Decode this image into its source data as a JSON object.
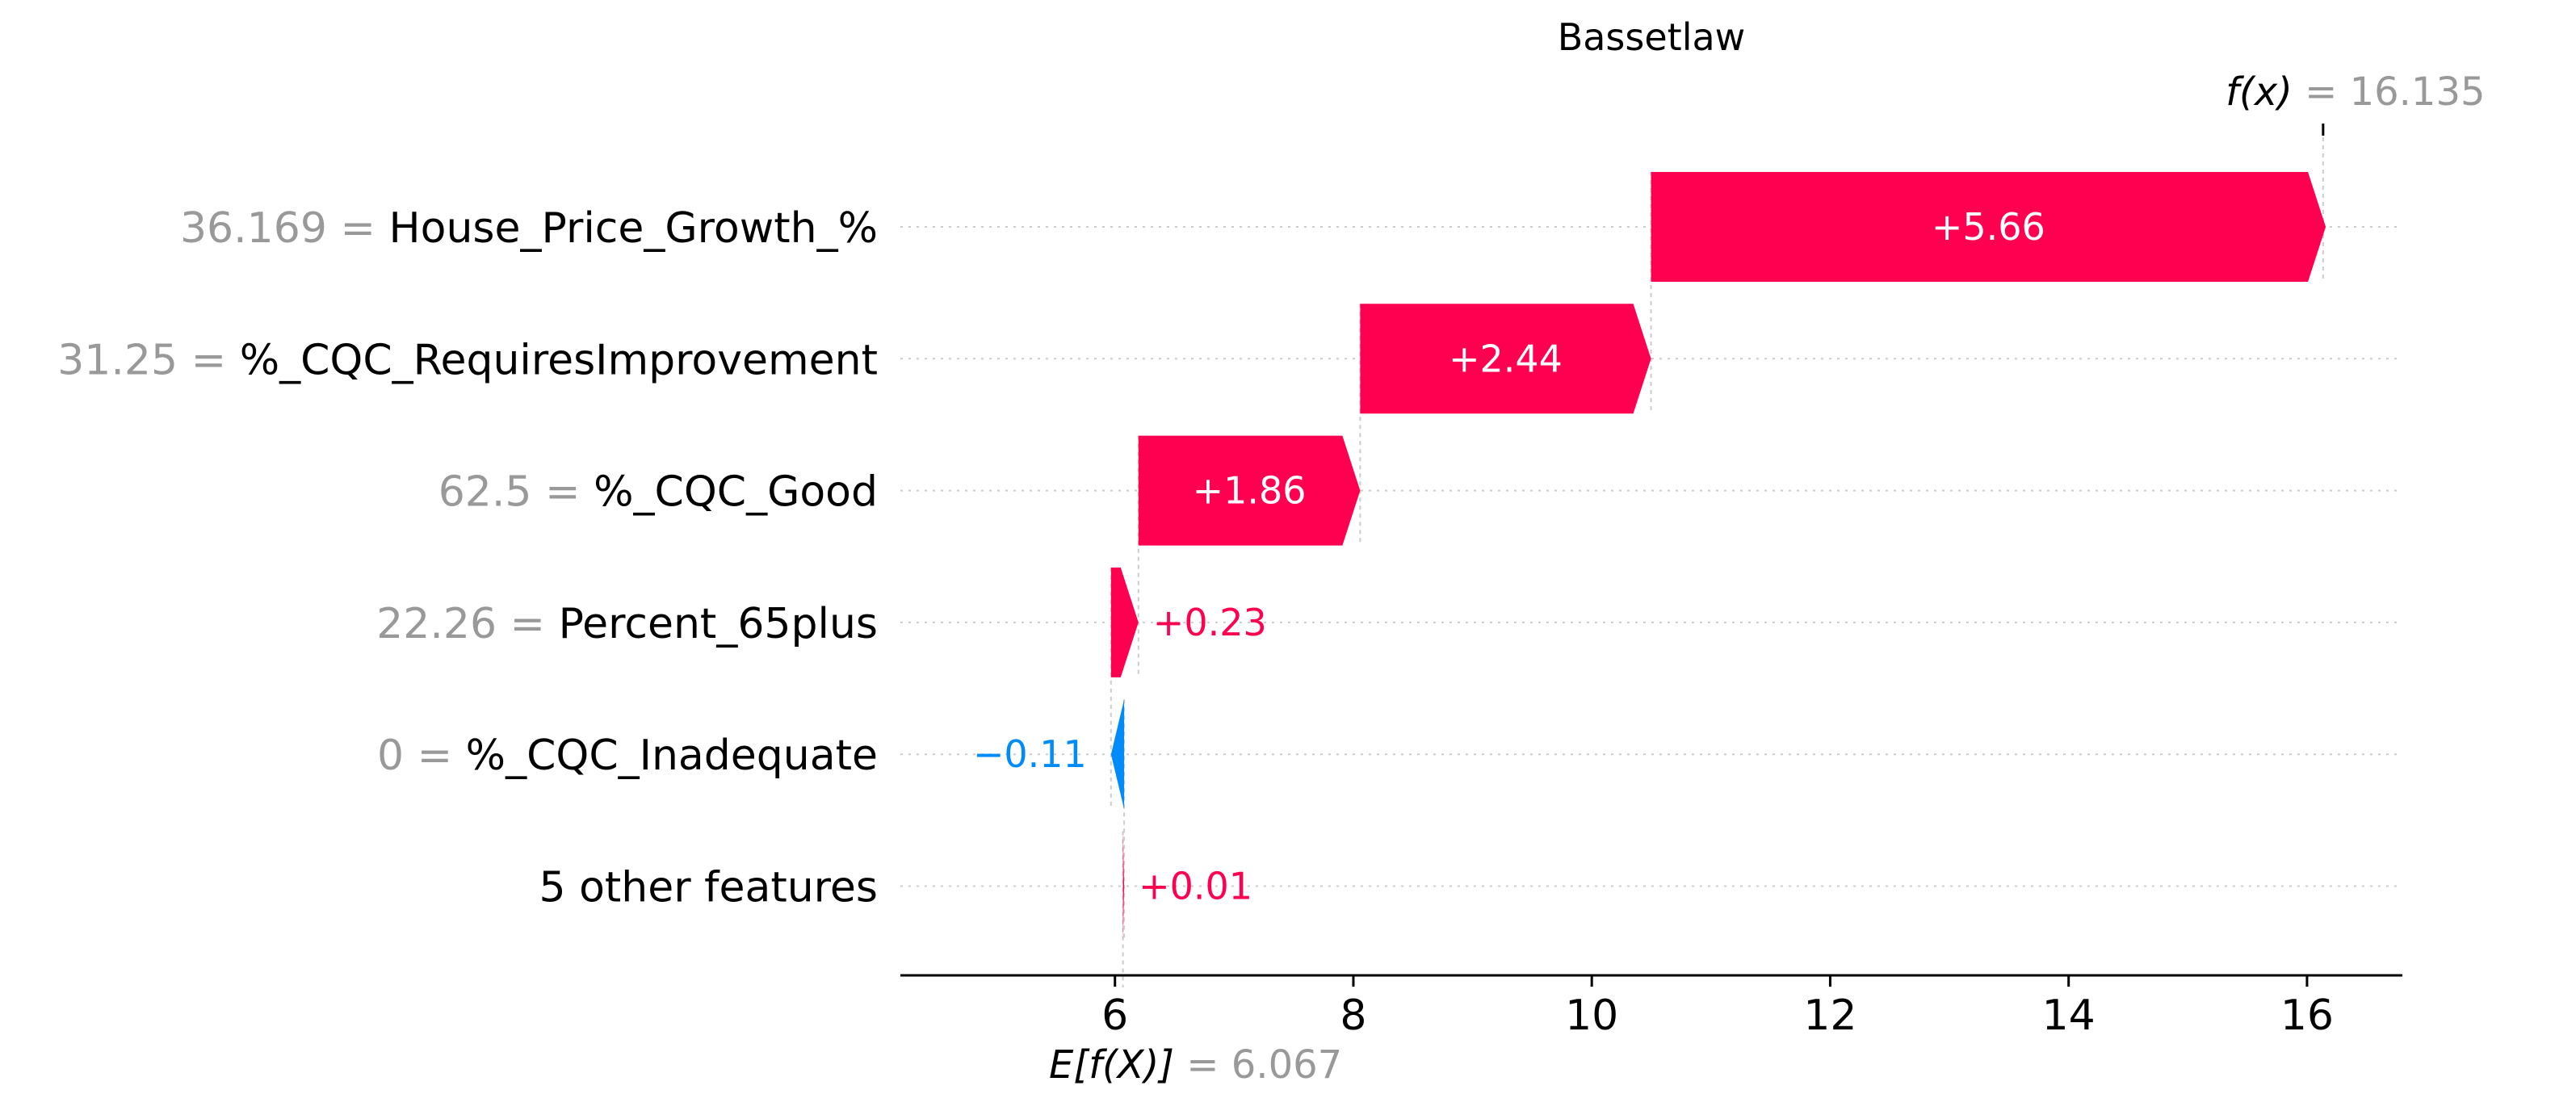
{
  "chart_data": {
    "type": "waterfall",
    "title": "Bassetlaw",
    "base_value": {
      "label": "E[f(X)]",
      "value": 6.067,
      "value_text": "6.067"
    },
    "output_value": {
      "label": "f(x)",
      "value": 16.135,
      "value_text": "16.135"
    },
    "features": [
      {
        "value_text": "36.169",
        "name": "House_Price_Growth_%",
        "contribution": 5.66,
        "contribution_text": "+5.66"
      },
      {
        "value_text": "31.25",
        "name": "%_CQC_RequiresImprovement",
        "contribution": 2.44,
        "contribution_text": "+2.44"
      },
      {
        "value_text": "62.5",
        "name": "%_CQC_Good",
        "contribution": 1.86,
        "contribution_text": "+1.86"
      },
      {
        "value_text": "22.26",
        "name": "Percent_65plus",
        "contribution": 0.23,
        "contribution_text": "+0.23"
      },
      {
        "value_text": "0",
        "name": "%_CQC_Inadequate",
        "contribution": -0.11,
        "contribution_text": "−0.11"
      },
      {
        "value_text": "",
        "name": "5 other features",
        "contribution": 0.01,
        "contribution_text": "+0.01"
      }
    ],
    "x_ticks": [
      6,
      8,
      10,
      12,
      14,
      16
    ],
    "xlim": [
      4.2,
      16.8
    ],
    "colors": {
      "positive": "#ff0051",
      "negative": "#008bfb",
      "grid": "#cccccc",
      "axis": "#000000",
      "muted": "#999999"
    }
  }
}
